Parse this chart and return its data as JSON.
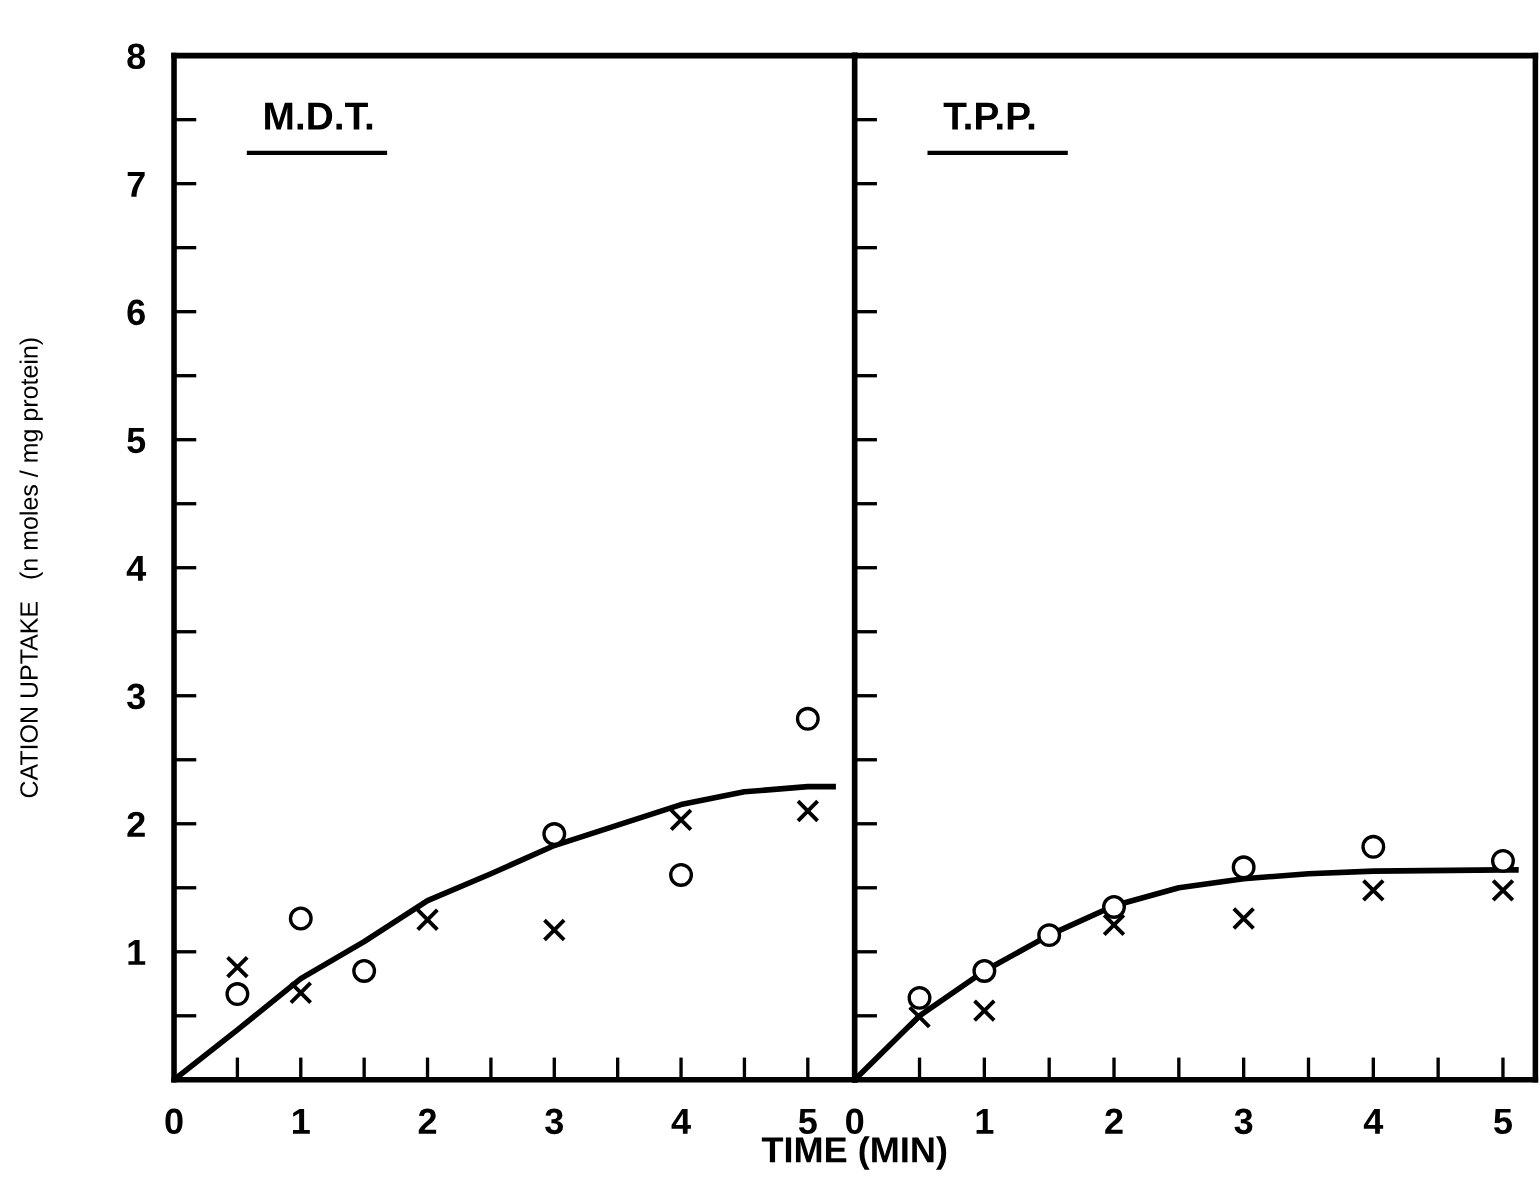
{
  "chart_data": [
    {
      "type": "scatter",
      "title": "M.D.T.",
      "ylabel": "CATION UPTAKE   (n moles / mg protein)",
      "xlabel": "TIME (MIN)",
      "xlim": [
        0,
        5.37
      ],
      "ylim": [
        0,
        8
      ],
      "xticks": [
        0,
        {
          "value": 0.5,
          "label": null
        },
        1,
        {
          "value": 1.5,
          "label": null
        },
        2,
        {
          "value": 2.5,
          "label": null
        },
        3,
        {
          "value": 3.5,
          "label": null
        },
        4,
        {
          "value": 4.5,
          "label": null
        },
        5
      ],
      "yticks": [
        {
          "value": 0.5,
          "label": null
        },
        1,
        {
          "value": 1.5,
          "label": null
        },
        2,
        {
          "value": 2.5,
          "label": null
        },
        3,
        {
          "value": 3.5,
          "label": null
        },
        4,
        {
          "value": 4.5,
          "label": null
        },
        5,
        {
          "value": 5.5,
          "label": null
        },
        6,
        {
          "value": 6.5,
          "label": null
        },
        7,
        {
          "value": 7.5,
          "label": null
        },
        8
      ],
      "grid": false,
      "series": [
        {
          "type": "scatter",
          "marker": "circle",
          "color": "#000000",
          "x": [
            0.5,
            1,
            1.5,
            3,
            4,
            5
          ],
          "values": [
            0.67,
            1.26,
            0.85,
            1.92,
            1.6,
            2.82
          ]
        },
        {
          "type": "scatter",
          "marker": "cross",
          "color": "#000000",
          "x": [
            0.5,
            1,
            2,
            3,
            4,
            5
          ],
          "values": [
            0.88,
            0.68,
            1.25,
            1.17,
            2.03,
            2.1
          ]
        },
        {
          "type": "line",
          "marker": "none",
          "color": "#000000",
          "x": [
            0,
            0.5,
            1,
            1.5,
            2,
            2.5,
            3,
            3.5,
            4,
            4.5,
            5,
            5.2
          ],
          "values": [
            0,
            0.39,
            0.79,
            1.08,
            1.4,
            1.61,
            1.83,
            1.99,
            2.15,
            2.25,
            2.29,
            2.29
          ]
        }
      ]
    },
    {
      "type": "scatter",
      "title": "T.P.P.",
      "tick_labels": "x",
      "xlim": [
        0,
        5.25
      ],
      "ylim": [
        0,
        8
      ],
      "xticks": [
        0,
        {
          "value": 0.5,
          "label": null
        },
        1,
        {
          "value": 1.5,
          "label": null
        },
        2,
        {
          "value": 2.5,
          "label": null
        },
        3,
        {
          "value": 3.5,
          "label": null
        },
        4,
        {
          "value": 4.5,
          "label": null
        },
        5
      ],
      "yticks": [
        {
          "value": 0.5,
          "label": null
        },
        1,
        {
          "value": 1.5,
          "label": null
        },
        2,
        {
          "value": 2.5,
          "label": null
        },
        3,
        {
          "value": 3.5,
          "label": null
        },
        4,
        {
          "value": 4.5,
          "label": null
        },
        5,
        {
          "value": 5.5,
          "label": null
        },
        6,
        {
          "value": 6.5,
          "label": null
        },
        7,
        {
          "value": 7.5,
          "label": null
        },
        8
      ],
      "grid": false,
      "series": [
        {
          "type": "scatter",
          "marker": "circle",
          "color": "#000000",
          "x": [
            0.5,
            1,
            1.5,
            2,
            3,
            4,
            5
          ],
          "values": [
            0.64,
            0.85,
            1.13,
            1.35,
            1.66,
            1.82,
            1.71
          ]
        },
        {
          "type": "scatter",
          "marker": "cross",
          "color": "#000000",
          "x": [
            0.5,
            1,
            2,
            3,
            4,
            5
          ],
          "values": [
            0.49,
            0.54,
            1.21,
            1.26,
            1.48,
            1.48
          ]
        },
        {
          "type": "line",
          "marker": "none",
          "color": "#000000",
          "x": [
            0,
            0.5,
            1,
            1.5,
            2,
            2.5,
            3,
            3.5,
            4,
            5,
            5.1
          ],
          "values": [
            0,
            0.5,
            0.85,
            1.13,
            1.36,
            1.5,
            1.57,
            1.61,
            1.63,
            1.64,
            1.64
          ]
        }
      ]
    }
  ]
}
